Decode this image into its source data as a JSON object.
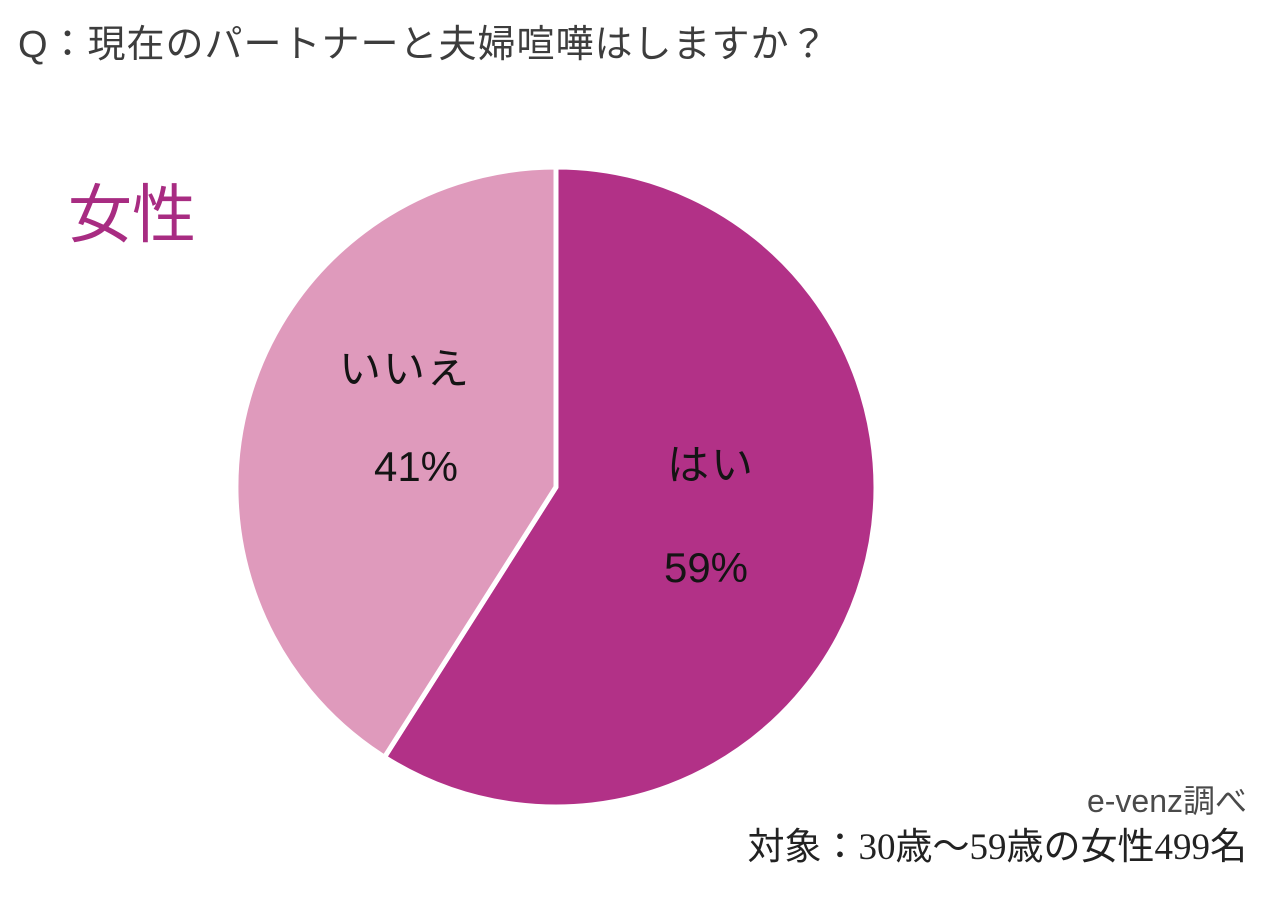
{
  "page": {
    "background": "#ffffff"
  },
  "title": "Q：現在のパートナーと夫婦喧嘩はしますか？",
  "chart_data": {
    "type": "pie",
    "title": "Q：現在のパートナーと夫婦喧嘩はしますか？",
    "group_label": "女性",
    "group_label_color": "#a82c82",
    "start": "top",
    "direction": "clockwise",
    "divider_color": "#ffffff",
    "slices": [
      {
        "label": "はい",
        "value": 59,
        "pct_label": "59%",
        "color": "#b23187"
      },
      {
        "label": "いいえ",
        "value": 41,
        "pct_label": "41%",
        "color": "#df9abc"
      }
    ]
  },
  "source": {
    "credit": "e-venz調べ",
    "sample": "対象：30歳〜59歳の女性499名"
  }
}
